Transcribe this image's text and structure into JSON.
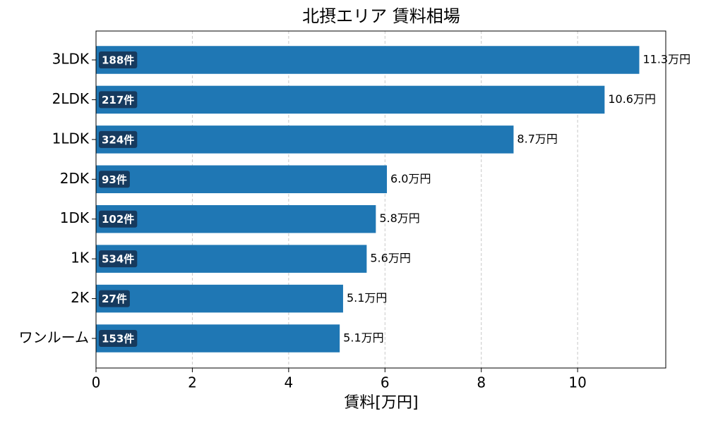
{
  "chart_data": {
    "type": "barh",
    "title": "北摂エリア 賃料相場",
    "xlabel": "賃料[万円]",
    "categories": [
      "3LDK",
      "2LDK",
      "1LDK",
      "2DK",
      "1DK",
      "1K",
      "2K",
      "ワンルーム"
    ],
    "values": [
      11.28,
      10.56,
      8.67,
      6.04,
      5.81,
      5.62,
      5.13,
      5.06
    ],
    "value_labels": [
      "11.3万円",
      "10.6万円",
      "8.7万円",
      "6.0万円",
      "5.8万円",
      "5.6万円",
      "5.1万円",
      "5.1万円"
    ],
    "counts": [
      188,
      217,
      324,
      93,
      102,
      534,
      27,
      153
    ],
    "count_labels": [
      "188件",
      "217件",
      "324件",
      "93件",
      "102件",
      "534件",
      "27件",
      "153件"
    ],
    "color": "#1f77b4",
    "xlim": [
      0,
      11.83
    ],
    "xticks": [
      0,
      2,
      4,
      6,
      8,
      10
    ],
    "grid": true
  }
}
